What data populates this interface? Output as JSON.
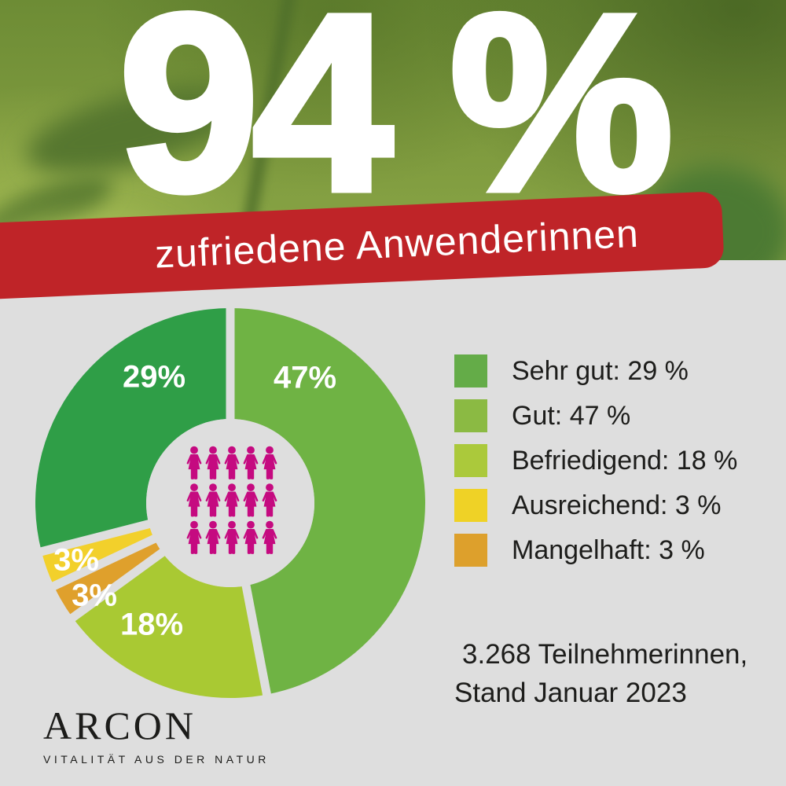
{
  "hero": {
    "headline": "94 %",
    "banner_label": "zufriedene Anwenderinnen",
    "banner_color": "#bf2428"
  },
  "chart_data": {
    "type": "pie",
    "donut": true,
    "title": "94 % zufriedene Anwenderinnen",
    "start_angle": "12 o'clock",
    "direction": "clockwise",
    "background_color": "#dedede",
    "segments": [
      {
        "name": "Gut",
        "value": 47,
        "display": "47%",
        "color": "#6fb344"
      },
      {
        "name": "Befriedigend",
        "value": 18,
        "display": "18%",
        "color": "#a9c933"
      },
      {
        "name": "Mangelhaft",
        "value": 3,
        "display": "3%",
        "color": "#dfa02c"
      },
      {
        "name": "Ausreichend",
        "value": 3,
        "display": "3%",
        "color": "#f2d02b"
      },
      {
        "name": "Sehr gut",
        "value": 29,
        "display": "29%",
        "color": "#2f9e47"
      }
    ],
    "legend": {
      "position": "right",
      "items": [
        {
          "label": "Sehr gut: 29 %",
          "color": "#64ac48"
        },
        {
          "label": "Gut: 47 %",
          "color": "#8bba43"
        },
        {
          "label": "Befriedigend: 18 %",
          "color": "#abc93b"
        },
        {
          "label": "Ausreichend: 3 %",
          "color": "#efd226"
        },
        {
          "label": "Mangelhaft: 3 %",
          "color": "#dda02c"
        }
      ]
    },
    "center_pictogram": {
      "icon": "woman",
      "count": 15,
      "cols": 5,
      "rows": 3,
      "color": "#c50a80"
    }
  },
  "footnote": {
    "line1": "3.268  Teilnehmerinnen,",
    "line2": "Stand Januar 2023"
  },
  "logo": {
    "name": "ARCON",
    "tagline": "VITALITÄT AUS DER NATUR"
  }
}
